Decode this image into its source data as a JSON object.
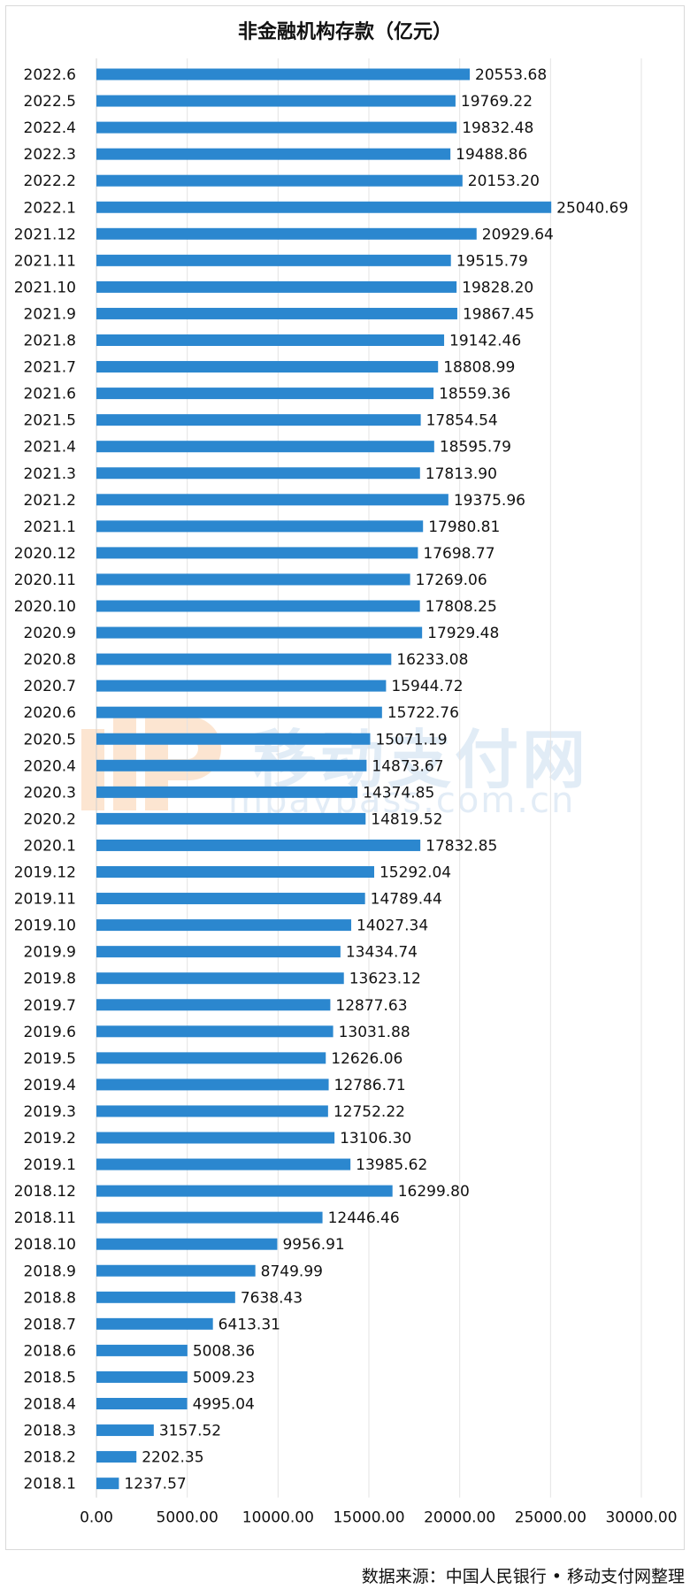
{
  "chart_data": {
    "type": "bar",
    "orientation": "horizontal",
    "title": "非金融机构存款（亿元）",
    "categories": [
      "2022.6",
      "2022.5",
      "2022.4",
      "2022.3",
      "2022.2",
      "2022.1",
      "2021.12",
      "2021.11",
      "2021.10",
      "2021.9",
      "2021.8",
      "2021.7",
      "2021.6",
      "2021.5",
      "2021.4",
      "2021.3",
      "2021.2",
      "2021.1",
      "2020.12",
      "2020.11",
      "2020.10",
      "2020.9",
      "2020.8",
      "2020.7",
      "2020.6",
      "2020.5",
      "2020.4",
      "2020.3",
      "2020.2",
      "2020.1",
      "2019.12",
      "2019.11",
      "2019.10",
      "2019.9",
      "2019.8",
      "2019.7",
      "2019.6",
      "2019.5",
      "2019.4",
      "2019.3",
      "2019.2",
      "2019.1",
      "2018.12",
      "2018.11",
      "2018.10",
      "2018.9",
      "2018.8",
      "2018.7",
      "2018.6",
      "2018.5",
      "2018.4",
      "2018.3",
      "2018.2",
      "2018.1"
    ],
    "values": [
      20553.68,
      19769.22,
      19832.48,
      19488.86,
      20153.2,
      25040.69,
      20929.64,
      19515.79,
      19828.2,
      19867.45,
      19142.46,
      18808.99,
      18559.36,
      17854.54,
      18595.79,
      17813.9,
      19375.96,
      17980.81,
      17698.77,
      17269.06,
      17808.25,
      17929.48,
      16233.08,
      15944.72,
      15722.76,
      15071.19,
      14873.67,
      14374.85,
      14819.52,
      17832.85,
      15292.04,
      14789.44,
      14027.34,
      13434.74,
      13623.12,
      12877.63,
      13031.88,
      12626.06,
      12786.71,
      12752.22,
      13106.3,
      13985.62,
      16299.8,
      12446.46,
      9956.91,
      8749.99,
      7638.43,
      6413.31,
      5008.36,
      5009.23,
      4995.04,
      3157.52,
      2202.35,
      1237.57
    ],
    "labels": [
      "20553.68",
      "19769.22",
      "19832.48",
      "19488.86",
      "20153.20",
      "25040.69",
      "20929.64",
      "19515.79",
      "19828.20",
      "19867.45",
      "19142.46",
      "18808.99",
      "18559.36",
      "17854.54",
      "18595.79",
      "17813.90",
      "19375.96",
      "17980.81",
      "17698.77",
      "17269.06",
      "17808.25",
      "17929.48",
      "16233.08",
      "15944.72",
      "15722.76",
      "15071.19",
      "14873.67",
      "14374.85",
      "14819.52",
      "17832.85",
      "15292.04",
      "14789.44",
      "14027.34",
      "13434.74",
      "13623.12",
      "12877.63",
      "13031.88",
      "12626.06",
      "12786.71",
      "12752.22",
      "13106.30",
      "13985.62",
      "16299.80",
      "12446.46",
      "9956.91",
      "8749.99",
      "7638.43",
      "6413.31",
      "5008.36",
      "5009.23",
      "4995.04",
      "3157.52",
      "2202.35",
      "1237.57"
    ],
    "xlim": [
      0,
      30000
    ],
    "xticks": [
      0,
      5000,
      10000,
      15000,
      20000,
      25000,
      30000
    ],
    "xtick_labels": [
      "0.00",
      "5000.00",
      "10000.00",
      "15000.00",
      "20000.00",
      "25000.00",
      "30000.00"
    ],
    "grid": "vertical",
    "bar_color": "#2b87cf"
  },
  "watermark": {
    "text": "移动支付网",
    "url": "mpaypass.com.cn"
  },
  "source": "数据来源：中国人民银行 • 移动支付网整理"
}
